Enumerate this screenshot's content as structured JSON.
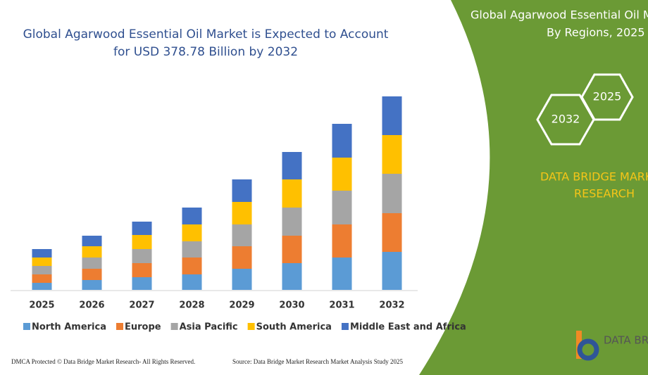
{
  "chart_data": {
    "type": "stacked-bar",
    "title": [
      "Global Agarwood Essential Oil Market is Expected to Account",
      "for USD 378.78 Billion by 2032"
    ],
    "categories": [
      "2025",
      "2026",
      "2027",
      "2028",
      "2029",
      "2030",
      "2031",
      "2032"
    ],
    "series": [
      {
        "name": "North America",
        "color": "#5b9bd5",
        "values": [
          10,
          14,
          18,
          22,
          30,
          38,
          46,
          54
        ]
      },
      {
        "name": "Europe",
        "color": "#ed7d31",
        "values": [
          12,
          16,
          20,
          24,
          32,
          39,
          47,
          55
        ]
      },
      {
        "name": "Asia Pacific",
        "color": "#a5a5a5",
        "values": [
          12,
          16,
          20,
          23,
          31,
          40,
          48,
          56
        ]
      },
      {
        "name": "South America",
        "color": "#ffc000",
        "values": [
          12,
          16,
          20,
          24,
          32,
          40,
          47,
          55
        ]
      },
      {
        "name": "Middle East and Africa",
        "color": "#4472c4",
        "values": [
          12,
          15,
          19,
          24,
          32,
          39,
          48,
          55
        ]
      }
    ]
  },
  "panel": {
    "title": [
      "Global Agarwood Essential Oil M",
      "By Regions, 2025 t"
    ],
    "hexagons": [
      "2032",
      "2025"
    ],
    "brand": [
      "DATA BRIDGE MARK",
      "RESEARCH"
    ],
    "logo": "DATA BR"
  },
  "footer": {
    "left": "DMCA Protected © Data Bridge Market Research-  All Rights Reserved.",
    "right": "Source: Data Bridge Market Research Market Analysis Study 2025"
  }
}
